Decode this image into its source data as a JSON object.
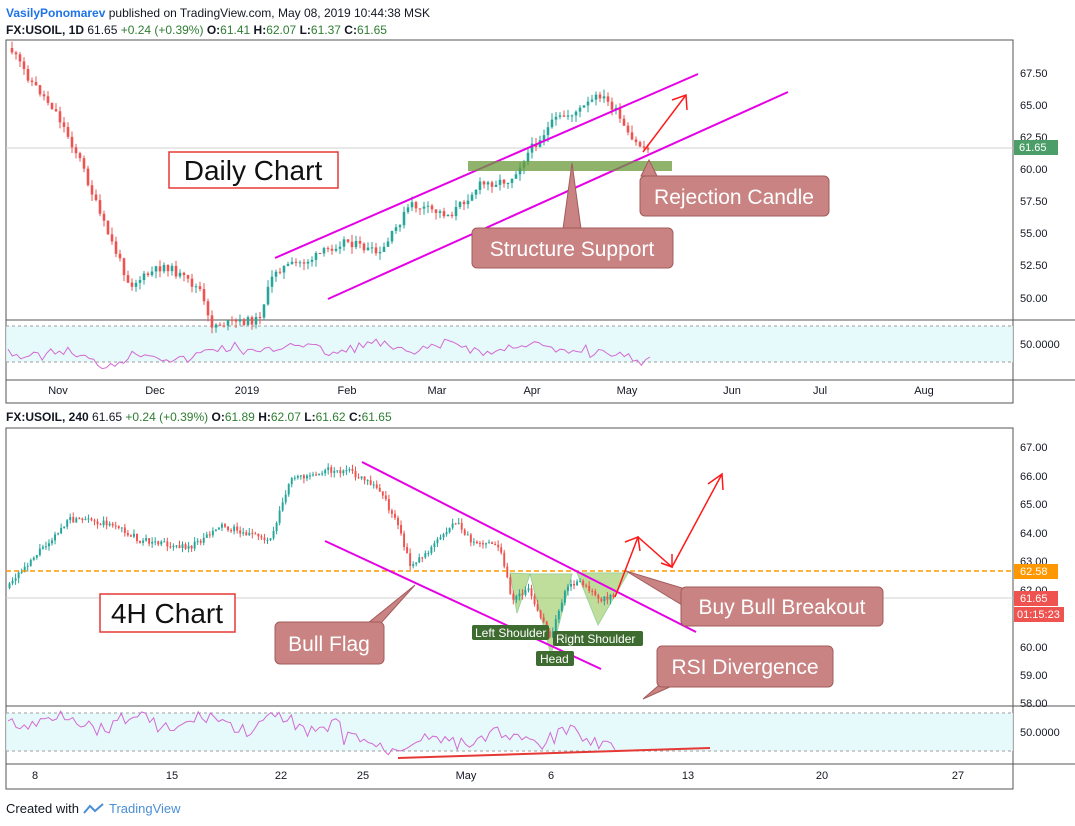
{
  "publish": {
    "user": "VasilyPonomarev",
    "text": "published on TradingView.com, May 08, 2019 10:44:38 MSK"
  },
  "footer": {
    "created_with": "Created with",
    "brand": "TradingView"
  },
  "daily": {
    "symbol": "FX:USOIL, 1D",
    "last": "61.65",
    "change": "+0.24 (+0.39%)",
    "o_label": "O:",
    "o": "61.41",
    "h_label": "H:",
    "h": "62.07",
    "l_label": "L:",
    "l": "61.37",
    "c_label": "C:",
    "c": "61.65",
    "price_ticks": [
      "67.50",
      "65.00",
      "62.50",
      "60.00",
      "57.50",
      "55.00",
      "52.50",
      "50.00"
    ],
    "price_tag": "61.65",
    "rsi_tick": "50.0000",
    "time_ticks": [
      "Nov",
      "Dec",
      "2019",
      "Feb",
      "Mar",
      "Apr",
      "May",
      "Jun",
      "Jul",
      "Aug"
    ],
    "title": "Daily Chart",
    "annotations": [
      "Rejection Candle",
      "Structure Support"
    ]
  },
  "h4": {
    "symbol": "FX:USOIL, 240",
    "last": "61.65",
    "change": "+0.24 (+0.39%)",
    "o_label": "O:",
    "o": "61.89",
    "h_label": "H:",
    "h": "62.07",
    "l_label": "L:",
    "l": "61.62",
    "c_label": "C:",
    "c": "61.65",
    "price_ticks": [
      "67.00",
      "66.00",
      "65.00",
      "64.00",
      "63.00",
      "62.00",
      "61.00",
      "60.00",
      "59.00",
      "58.00"
    ],
    "tag_level": "62.58",
    "tag_price": "61.65",
    "tag_timer": "01:15:23",
    "rsi_tick": "50.0000",
    "time_ticks": [
      "8",
      "15",
      "22",
      "25",
      "May",
      "6",
      "13",
      "20",
      "27"
    ],
    "title": "4H Chart",
    "annotations": [
      "Bull Flag",
      "Buy Bull Breakout",
      "RSI Divergence"
    ],
    "pattern_labels": [
      "Left Shoulder",
      "Right Shoulder",
      "Head"
    ]
  },
  "chart_data": [
    {
      "type": "candlestick",
      "title": "FX:USOIL, 1D",
      "x": [
        "Nov",
        "Dec",
        "2019",
        "Feb",
        "Mar",
        "Apr",
        "May"
      ],
      "close_approx": [
        63.0,
        51.5,
        45.5,
        54.0,
        56.0,
        62.0,
        61.65
      ],
      "ylim": [
        48.5,
        69.0
      ],
      "last_close": 61.65
    },
    {
      "type": "candlestick",
      "title": "FX:USOIL, 240",
      "x": [
        "8",
        "15",
        "22",
        "25",
        "May",
        "6"
      ],
      "close_approx": [
        63.6,
        63.4,
        65.6,
        66.0,
        63.5,
        61.65
      ],
      "ylim": [
        57.7,
        67.4
      ],
      "breakout_level": 62.58,
      "last_close": 61.65
    }
  ],
  "colors": {
    "bull": "#26a69a",
    "bear": "#ef5350",
    "channel": "#e600e6",
    "arrow": "#ff1a1a",
    "annotation": "#c98383",
    "level": "#ff9800"
  }
}
